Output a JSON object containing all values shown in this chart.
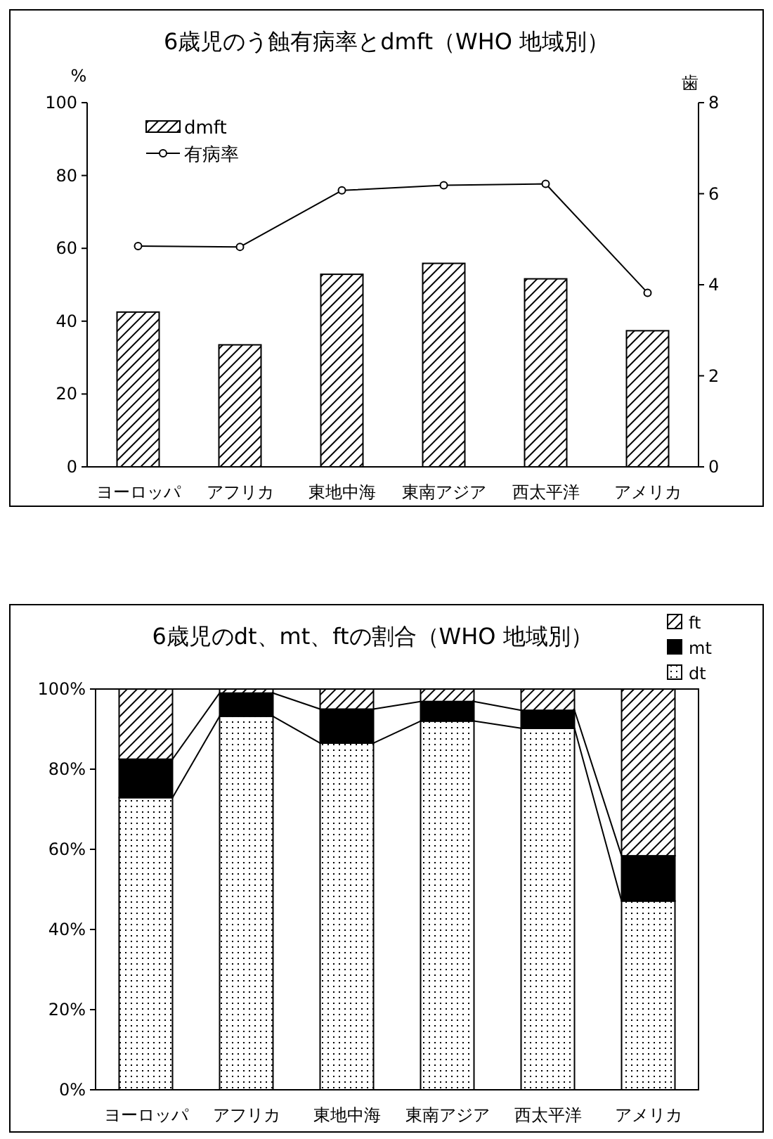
{
  "chart_data": [
    {
      "type": "bar",
      "title": "6歳児のう蝕有病率とdmft（WHO 地域別）",
      "categories": [
        "ヨーロッパ",
        "アフリカ",
        "東地中海",
        "東南アジア",
        "西太平洋",
        "アメリカ"
      ],
      "series": [
        {
          "name": "dmft",
          "type": "bar",
          "axis": "y2",
          "values": [
            3.4,
            2.68,
            4.23,
            4.47,
            4.13,
            2.99
          ]
        },
        {
          "name": "有病率",
          "type": "line",
          "color": "#000000",
          "marker": "circle",
          "values": [
            60.6,
            60.4,
            75.9,
            77.3,
            77.7,
            47.8
          ]
        }
      ],
      "ylabel": "%",
      "y2label": "歯",
      "ylim": [
        0,
        100
      ],
      "yticks": [
        0,
        20,
        40,
        60,
        80,
        100
      ],
      "y2lim": [
        0,
        8
      ],
      "y2ticks": [
        0,
        2,
        4,
        6,
        8
      ],
      "legend": "top left"
    },
    {
      "type": "bar",
      "title": "6歳児のdt、mt、ftの割合（WHO 地域別）",
      "categories": [
        "ヨーロッパ",
        "アフリカ",
        "東地中海",
        "東南アジア",
        "西太平洋",
        "アメリカ"
      ],
      "stacked": true,
      "series": [
        {
          "name": "dt",
          "values": [
            72.9,
            93.2,
            86.5,
            92.0,
            90.2,
            47.1
          ]
        },
        {
          "name": "mt",
          "color": "#000000",
          "values": [
            9.6,
            5.8,
            8.5,
            4.9,
            4.5,
            11.3
          ]
        },
        {
          "name": "ft",
          "values": [
            17.5,
            1.0,
            5.0,
            3.1,
            5.3,
            41.6
          ]
        }
      ],
      "ylim": [
        0,
        100
      ],
      "yticks": [
        {
          "value": 0,
          "label": "0%"
        },
        {
          "value": 20,
          "label": "20%"
        },
        {
          "value": 40,
          "label": "40%"
        },
        {
          "value": 60,
          "label": "60%"
        },
        {
          "value": 80,
          "label": "80%"
        },
        {
          "value": 100,
          "label": "100%"
        }
      ],
      "legend": "top right"
    }
  ]
}
